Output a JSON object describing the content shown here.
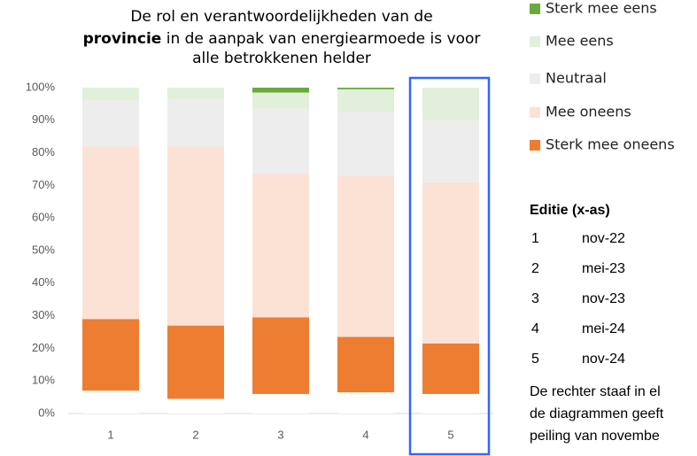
{
  "chart_data": {
    "type": "bar",
    "stacked": true,
    "title": [
      "De rol en verantwoordelijkheden van de",
      "provincie",
      "in de aanpak van energiearmoede is voor",
      "alle betrokkenen helder"
    ],
    "categories": [
      "1",
      "2",
      "3",
      "4",
      "5"
    ],
    "series": [
      {
        "color": "#ffffff",
        "values": [
          7,
          4.5,
          6,
          6.5,
          6
        ]
      },
      {
        "name": "Sterk mee oneens",
        "color": "#ed7d31",
        "values": [
          22,
          22.5,
          23.5,
          17,
          15.5
        ]
      },
      {
        "name": "Mee oneens",
        "color": "#fbe2d5",
        "values": [
          53,
          55,
          44,
          49.5,
          49.5
        ]
      },
      {
        "name": "Neutraal",
        "color": "#ededed",
        "values": [
          14,
          14.5,
          20,
          19.5,
          19
        ]
      },
      {
        "name": "Mee eens",
        "color": "#e2efda",
        "values": [
          4,
          3.5,
          5,
          7,
          10
        ]
      },
      {
        "name": "Sterk mee eens",
        "color": "#6aaa3a",
        "values": [
          0,
          0,
          1.5,
          0.5,
          0
        ]
      }
    ],
    "ylim": [
      0,
      100
    ],
    "yticks": [
      {
        "value": 0,
        "label": "0%"
      },
      {
        "value": 10,
        "label": "10%"
      },
      {
        "value": 20,
        "label": "20%"
      },
      {
        "value": 30,
        "label": "30%"
      },
      {
        "value": 40,
        "label": "40%"
      },
      {
        "value": 50,
        "label": "50%"
      },
      {
        "value": 60,
        "label": "60%"
      },
      {
        "value": 70,
        "label": "70%"
      },
      {
        "value": 80,
        "label": "80%"
      },
      {
        "value": 90,
        "label": "90%"
      },
      {
        "value": 100,
        "label": "100%"
      }
    ],
    "grid": false
  },
  "side": {
    "heading": "Editie (x-as)",
    "rows": [
      [
        "1",
        "nov-22"
      ],
      [
        "2",
        "mei-23"
      ],
      [
        "3",
        "nov-23"
      ],
      [
        "4",
        "mei-24"
      ],
      [
        "5",
        "nov-24"
      ]
    ],
    "note": [
      "De rechter staaf in el",
      "de diagrammen geeft",
      "peiling van novembe"
    ]
  }
}
